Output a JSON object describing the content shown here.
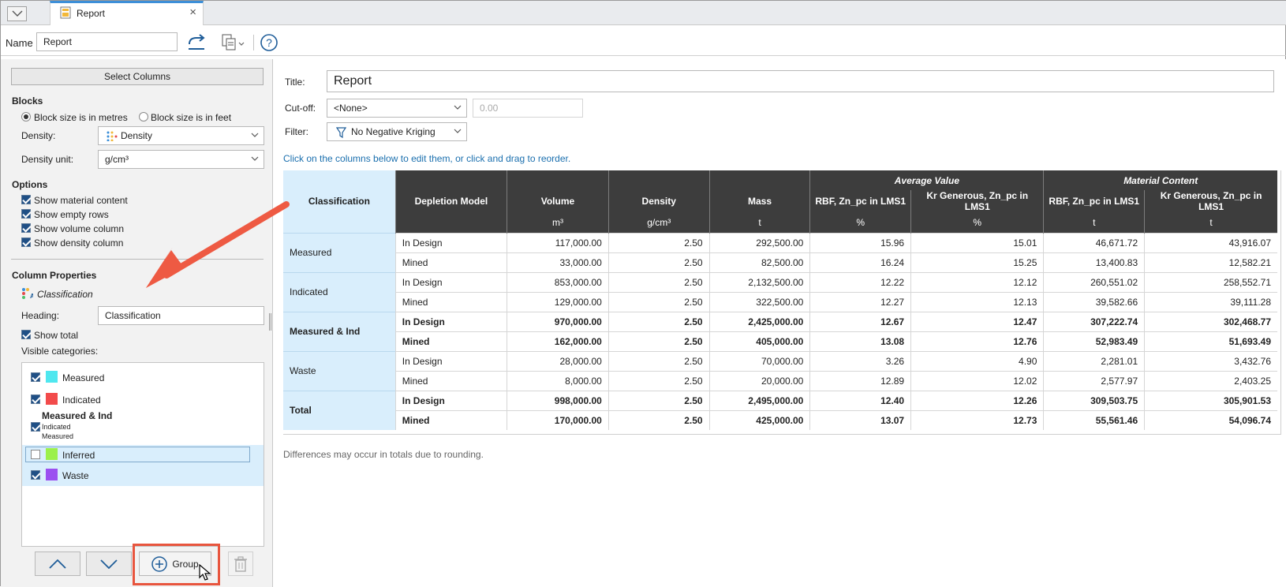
{
  "tab": {
    "label": "Report",
    "close": "×"
  },
  "name_row": {
    "label": "Name",
    "value": "Report"
  },
  "left": {
    "select_columns": "Select Columns",
    "blocks": {
      "heading": "Blocks",
      "radio_metres": "Block size is in metres",
      "radio_feet": "Block size is in feet",
      "density_label": "Density:",
      "density_value": "Density",
      "density_unit_label": "Density unit:",
      "density_unit_value": "g/cm³"
    },
    "options": {
      "heading": "Options",
      "items": [
        "Show material content",
        "Show empty rows",
        "Show volume column",
        "Show density column"
      ]
    },
    "column_properties": {
      "heading": "Column Properties",
      "column_name": "Classification",
      "heading_label": "Heading:",
      "heading_value": "Classification",
      "show_total": "Show total",
      "visible_categories": "Visible categories:"
    },
    "categories": [
      {
        "label": "Measured",
        "color": "#4fe7ef",
        "checked": true
      },
      {
        "label": "Indicated",
        "color": "#f24b4b",
        "checked": true
      },
      {
        "label": "Measured & Ind",
        "sub1": "Indicated",
        "sub2": "Measured",
        "checked": true
      },
      {
        "label": "Inferred",
        "color": "#9bf04b",
        "checked": false
      },
      {
        "label": "Waste",
        "color": "#9b4ff0",
        "checked": true
      }
    ],
    "group_button": "Group"
  },
  "right": {
    "title_label": "Title:",
    "title_value": "Report",
    "cutoff_label": "Cut-off:",
    "cutoff_value": "<None>",
    "cutoff_number": "0.00",
    "filter_label": "Filter:",
    "filter_value": "No Negative Kriging",
    "hint": "Click on the columns below to edit them, or click and drag to reorder.",
    "footnote": "Differences may occur in totals due to rounding."
  },
  "table": {
    "group_headers": {
      "average": "Average Value",
      "material": "Material Content"
    },
    "headers": [
      "Classification",
      "Depletion Model",
      "Volume",
      "Density",
      "Mass",
      "RBF, Zn_pc in LMS1",
      "Kr Generous, Zn_pc in LMS1",
      "RBF, Zn_pc in LMS1",
      "Kr Generous, Zn_pc in LMS1"
    ],
    "units": [
      "m³",
      "g/cm³",
      "t",
      "%",
      "%",
      "t",
      "t"
    ],
    "groups": [
      {
        "name": "Measured",
        "bold": false,
        "rows": [
          [
            "In Design",
            "117,000.00",
            "2.50",
            "292,500.00",
            "15.96",
            "15.01",
            "46,671.72",
            "43,916.07"
          ],
          [
            "Mined",
            "33,000.00",
            "2.50",
            "82,500.00",
            "16.24",
            "15.25",
            "13,400.83",
            "12,582.21"
          ]
        ]
      },
      {
        "name": "Indicated",
        "bold": false,
        "rows": [
          [
            "In Design",
            "853,000.00",
            "2.50",
            "2,132,500.00",
            "12.22",
            "12.12",
            "260,551.02",
            "258,552.71"
          ],
          [
            "Mined",
            "129,000.00",
            "2.50",
            "322,500.00",
            "12.27",
            "12.13",
            "39,582.66",
            "39,111.28"
          ]
        ]
      },
      {
        "name": "Measured & Ind",
        "bold": true,
        "rows": [
          [
            "In Design",
            "970,000.00",
            "2.50",
            "2,425,000.00",
            "12.67",
            "12.47",
            "307,222.74",
            "302,468.77"
          ],
          [
            "Mined",
            "162,000.00",
            "2.50",
            "405,000.00",
            "13.08",
            "12.76",
            "52,983.49",
            "51,693.49"
          ]
        ]
      },
      {
        "name": "Waste",
        "bold": false,
        "rows": [
          [
            "In Design",
            "28,000.00",
            "2.50",
            "70,000.00",
            "3.26",
            "4.90",
            "2,281.01",
            "3,432.76"
          ],
          [
            "Mined",
            "8,000.00",
            "2.50",
            "20,000.00",
            "12.89",
            "12.02",
            "2,577.97",
            "2,403.25"
          ]
        ]
      },
      {
        "name": "Total",
        "bold": true,
        "rows": [
          [
            "In Design",
            "998,000.00",
            "2.50",
            "2,495,000.00",
            "12.40",
            "12.26",
            "309,503.75",
            "305,901.53"
          ],
          [
            "Mined",
            "170,000.00",
            "2.50",
            "425,000.00",
            "13.07",
            "12.73",
            "55,561.46",
            "54,096.74"
          ]
        ]
      }
    ]
  }
}
